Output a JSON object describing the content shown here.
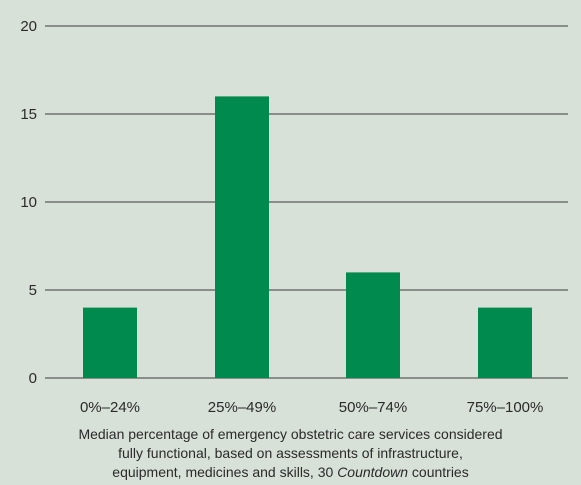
{
  "chart_data": {
    "type": "bar",
    "categories": [
      "0%–24%",
      "25%–49%",
      "50%–74%",
      "75%–100%"
    ],
    "values": [
      4,
      16,
      6,
      4
    ],
    "title": "",
    "xlabel": "Median percentage of emergency obstetric care services considered fully functional, based on assessments of infrastructure, equipment, medicines and skills, 30 Countdown countries",
    "ylabel": "",
    "ylim": [
      0,
      20
    ],
    "yticks": [
      0,
      5,
      10,
      15,
      20
    ],
    "grid": true,
    "legend": "none",
    "colors": {
      "bar": "#008a4e",
      "background": "#d8e1d7",
      "gridline": "#3a3a3a"
    }
  },
  "caption": {
    "line1": "Median percentage of emergency obstetric care services considered",
    "line2": "fully functional, based on assessments of infrastructure,",
    "line3_prefix": "equipment, medicines and skills, 30 ",
    "line3_italic": "Countdown",
    "line3_suffix": " countries"
  }
}
